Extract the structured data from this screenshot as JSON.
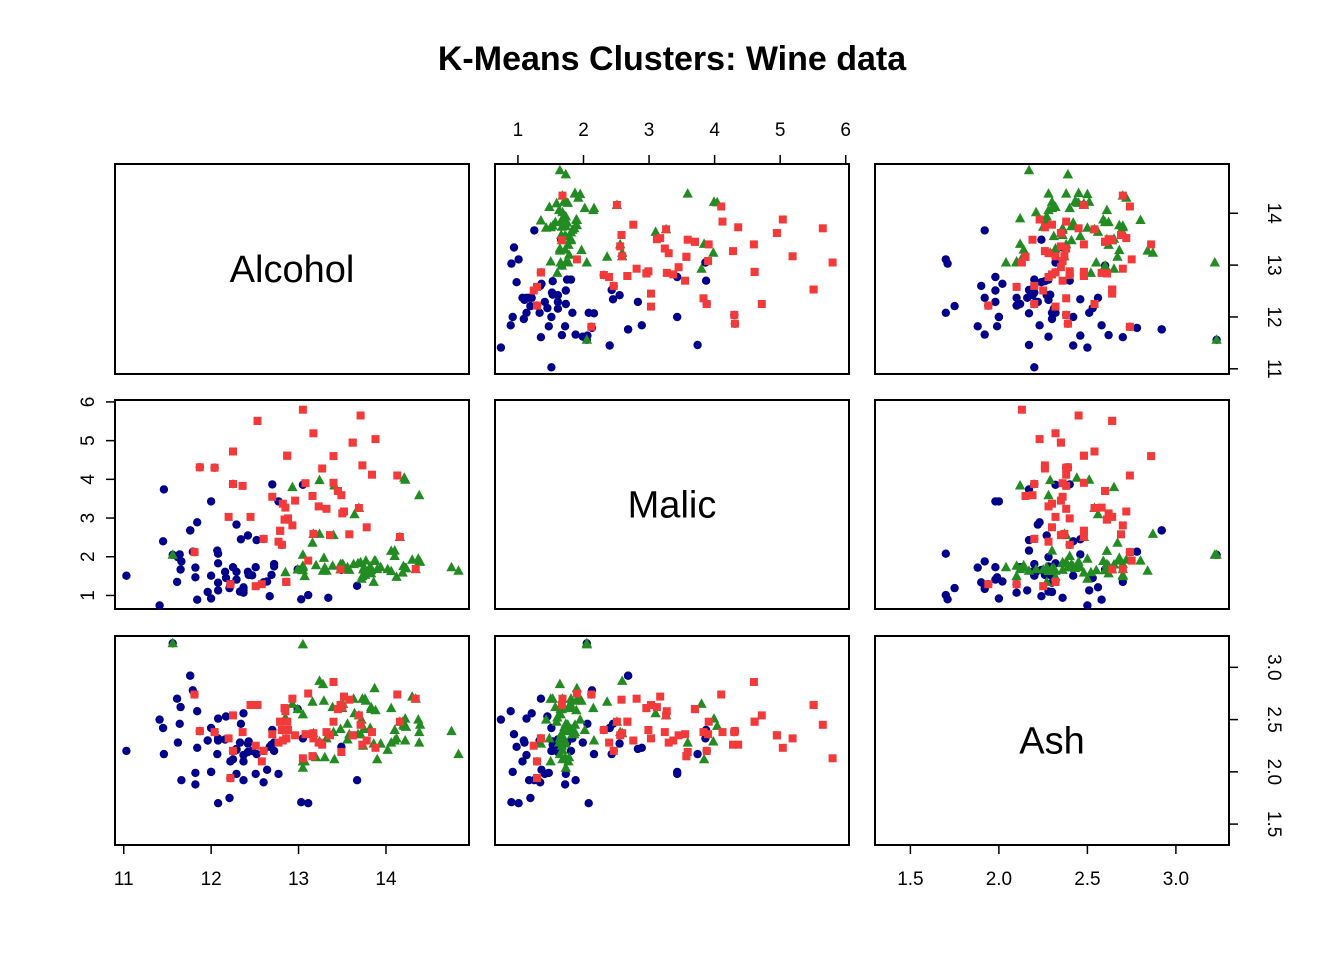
{
  "chart_data": {
    "type": "scatter-matrix",
    "title": "K-Means Clusters: Wine data",
    "variables": [
      "Alcohol",
      "Malic",
      "Ash"
    ],
    "axes": {
      "Alcohol": {
        "range": [
          10.9,
          14.95
        ],
        "ticks": [
          11,
          12,
          13,
          14
        ]
      },
      "Malic": {
        "range": [
          0.65,
          6.05
        ],
        "ticks": [
          1,
          2,
          3,
          4,
          5,
          6
        ]
      },
      "Ash": {
        "range": [
          1.3,
          3.3
        ],
        "ticks": [
          1.5,
          2.0,
          2.5,
          3.0
        ],
        "tick_labels": [
          "1.5",
          "2.0",
          "2.5",
          "3.0"
        ]
      }
    },
    "clusters": [
      {
        "color": "#00008B",
        "shape": "circle",
        "points": [
          [
            11.03,
            1.51,
            2.2
          ],
          [
            11.41,
            0.74,
            2.5
          ],
          [
            11.45,
            2.4,
            2.42
          ],
          [
            11.46,
            3.74,
            2.17
          ],
          [
            11.56,
            2.05,
            3.23
          ],
          [
            11.61,
            1.35,
            2.7
          ],
          [
            11.62,
            1.99,
            2.28
          ],
          [
            11.64,
            2.06,
            2.46
          ],
          [
            11.65,
            1.67,
            2.62
          ],
          [
            11.66,
            1.88,
            1.92
          ],
          [
            11.76,
            2.68,
            2.92
          ],
          [
            11.79,
            2.13,
            2.78
          ],
          [
            11.81,
            2.12,
            2.74
          ],
          [
            11.82,
            1.47,
            1.99
          ],
          [
            11.84,
            2.89,
            2.23
          ],
          [
            11.84,
            0.89,
            2.58
          ],
          [
            11.87,
            4.31,
            2.39
          ],
          [
            11.96,
            1.09,
            2.3
          ],
          [
            12.0,
            3.43,
            2.0
          ],
          [
            12.0,
            0.92,
            2.0
          ],
          [
            12.04,
            4.3,
            2.38
          ],
          [
            12.07,
            2.16,
            2.17
          ],
          [
            12.08,
            1.13,
            2.51
          ],
          [
            12.08,
            1.33,
            2.3
          ],
          [
            12.08,
            1.83,
            2.32
          ],
          [
            12.08,
            2.08,
            1.7
          ],
          [
            12.17,
            1.45,
            2.53
          ],
          [
            12.21,
            1.19,
            1.75
          ],
          [
            12.22,
            1.29,
            1.94
          ],
          [
            12.25,
            1.73,
            2.12
          ],
          [
            12.25,
            3.88,
            2.2
          ],
          [
            12.29,
            1.61,
            2.21
          ],
          [
            12.29,
            2.83,
            2.22
          ],
          [
            12.29,
            1.41,
            1.98
          ],
          [
            12.33,
            1.1,
            2.28
          ],
          [
            12.34,
            2.45,
            2.46
          ],
          [
            12.37,
            1.17,
            1.92
          ],
          [
            12.37,
            1.07,
            2.1
          ],
          [
            12.37,
            1.21,
            2.56
          ],
          [
            12.37,
            1.13,
            2.16
          ],
          [
            12.42,
            2.55,
            2.27
          ],
          [
            12.42,
            1.61,
            2.19
          ],
          [
            12.43,
            1.53,
            2.29
          ],
          [
            12.47,
            1.52,
            2.2
          ],
          [
            12.51,
            1.73,
            1.98
          ],
          [
            12.52,
            2.43,
            2.17
          ],
          [
            12.6,
            1.34,
            1.9
          ],
          [
            12.6,
            2.46,
            2.2
          ],
          [
            12.64,
            1.36,
            2.02
          ],
          [
            12.67,
            0.98,
            2.24
          ],
          [
            12.69,
            1.53,
            2.26
          ],
          [
            12.7,
            3.87,
            2.4
          ],
          [
            12.72,
            1.75,
            2.28
          ],
          [
            12.72,
            1.81,
            2.2
          ],
          [
            12.77,
            3.43,
            1.98
          ],
          [
            12.81,
            2.31,
            2.4
          ],
          [
            12.99,
            1.67,
            2.6
          ],
          [
            13.03,
            0.9,
            1.71
          ],
          [
            13.05,
            3.86,
            2.32
          ],
          [
            13.11,
            1.01,
            1.7
          ],
          [
            13.34,
            0.94,
            2.36
          ],
          [
            13.49,
            1.66,
            2.24
          ],
          [
            13.67,
            1.25,
            1.92
          ],
          [
            11.82,
            1.72,
            1.88
          ],
          [
            12.16,
            1.61,
            2.31
          ],
          [
            12.0,
            1.51,
            2.42
          ],
          [
            11.76,
            2.68,
            2.92
          ],
          [
            12.86,
            1.35,
            2.32
          ],
          [
            12.22,
            1.29,
            2.1
          ]
        ]
      },
      {
        "color": "#228B22",
        "shape": "triangle",
        "points": [
          [
            14.23,
            1.71,
            2.43
          ],
          [
            13.2,
            1.78,
            2.14
          ],
          [
            13.16,
            2.36,
            2.67
          ],
          [
            14.37,
            1.95,
            2.5
          ],
          [
            13.24,
            2.59,
            2.87
          ],
          [
            14.2,
            1.76,
            2.45
          ],
          [
            14.39,
            1.87,
            2.45
          ],
          [
            14.06,
            2.15,
            2.61
          ],
          [
            14.83,
            1.64,
            2.17
          ],
          [
            13.86,
            1.35,
            2.27
          ],
          [
            14.1,
            2.16,
            2.3
          ],
          [
            14.12,
            1.48,
            2.32
          ],
          [
            13.75,
            1.73,
            2.41
          ],
          [
            14.75,
            1.73,
            2.39
          ],
          [
            14.38,
            1.87,
            2.38
          ],
          [
            13.63,
            1.81,
            2.7
          ],
          [
            14.3,
            1.92,
            2.72
          ],
          [
            13.83,
            1.57,
            2.62
          ],
          [
            14.19,
            1.59,
            2.48
          ],
          [
            13.64,
            3.1,
            2.56
          ],
          [
            14.06,
            1.63,
            2.28
          ],
          [
            12.93,
            3.8,
            2.65
          ],
          [
            13.71,
            1.86,
            2.36
          ],
          [
            12.85,
            1.6,
            2.52
          ],
          [
            13.5,
            1.81,
            2.61
          ],
          [
            13.05,
            2.05,
            3.22
          ],
          [
            13.39,
            1.77,
            2.62
          ],
          [
            13.3,
            1.72,
            2.14
          ],
          [
            13.87,
            1.9,
            2.8
          ],
          [
            14.02,
            1.68,
            2.21
          ],
          [
            13.73,
            1.5,
            2.7
          ],
          [
            13.58,
            1.66,
            2.36
          ],
          [
            13.68,
            1.83,
            2.36
          ],
          [
            13.76,
            1.53,
            2.7
          ],
          [
            13.51,
            1.8,
            2.65
          ],
          [
            13.48,
            1.81,
            2.41
          ],
          [
            13.28,
            1.64,
            2.84
          ],
          [
            13.05,
            1.65,
            2.55
          ],
          [
            13.07,
            1.5,
            2.1
          ],
          [
            14.22,
            3.99,
            2.51
          ],
          [
            13.56,
            1.71,
            2.31
          ],
          [
            13.41,
            3.84,
            2.12
          ],
          [
            13.88,
            1.89,
            2.59
          ],
          [
            13.24,
            3.98,
            2.29
          ],
          [
            13.05,
            1.77,
            2.1
          ],
          [
            14.21,
            4.04,
            2.44
          ],
          [
            14.38,
            3.59,
            2.28
          ],
          [
            13.9,
            1.68,
            2.12
          ],
          [
            14.1,
            2.02,
            2.4
          ],
          [
            13.94,
            1.73,
            2.27
          ],
          [
            13.05,
            1.73,
            2.04
          ],
          [
            13.83,
            1.65,
            2.6
          ],
          [
            13.82,
            1.75,
            2.42
          ],
          [
            13.77,
            1.9,
            2.68
          ],
          [
            13.74,
            1.67,
            2.25
          ],
          [
            13.56,
            1.73,
            2.46
          ],
          [
            14.22,
            1.7,
            2.3
          ],
          [
            13.29,
            1.97,
            2.68
          ],
          [
            13.72,
            1.43,
            2.5
          ],
          [
            11.56,
            2.05,
            3.23
          ],
          [
            12.99,
            1.67,
            2.6
          ],
          [
            13.69,
            3.26,
            2.54
          ],
          [
            13.17,
            2.59,
            2.37
          ],
          [
            13.4,
            2.56,
            2.38
          ],
          [
            14.16,
            2.51,
            2.48
          ],
          [
            14.34,
            1.68,
            2.7
          ],
          [
            13.48,
            1.67,
            2.64
          ],
          [
            13.32,
            1.64,
            2.32
          ]
        ]
      },
      {
        "color": "#F23A3A",
        "shape": "square",
        "points": [
          [
            12.86,
            1.35,
            2.32
          ],
          [
            12.88,
            2.99,
            2.4
          ],
          [
            12.81,
            2.31,
            2.4
          ],
          [
            12.7,
            3.55,
            2.36
          ],
          [
            12.51,
            1.24,
            2.25
          ],
          [
            12.6,
            2.46,
            2.2
          ],
          [
            12.25,
            4.72,
            2.54
          ],
          [
            12.53,
            5.51,
            2.64
          ],
          [
            13.49,
            3.59,
            2.19
          ],
          [
            12.84,
            2.96,
            2.61
          ],
          [
            12.93,
            2.81,
            2.7
          ],
          [
            13.36,
            2.56,
            2.35
          ],
          [
            13.52,
            3.17,
            2.72
          ],
          [
            13.62,
            4.95,
            2.35
          ],
          [
            12.25,
            3.88,
            2.2
          ],
          [
            13.16,
            3.57,
            2.15
          ],
          [
            13.88,
            5.04,
            2.23
          ],
          [
            12.87,
            4.61,
            2.48
          ],
          [
            13.32,
            3.24,
            2.38
          ],
          [
            13.08,
            3.9,
            2.36
          ],
          [
            13.5,
            3.12,
            2.62
          ],
          [
            12.79,
            2.67,
            2.48
          ],
          [
            13.11,
            1.9,
            2.75
          ],
          [
            13.23,
            3.3,
            2.28
          ],
          [
            12.58,
            1.29,
            2.1
          ],
          [
            13.17,
            5.19,
            2.32
          ],
          [
            13.84,
            4.12,
            2.38
          ],
          [
            12.45,
            3.03,
            2.64
          ],
          [
            14.34,
            1.68,
            2.7
          ],
          [
            13.48,
            1.67,
            2.64
          ],
          [
            12.36,
            3.83,
            2.38
          ],
          [
            13.69,
            3.26,
            2.54
          ],
          [
            12.85,
            3.27,
            2.58
          ],
          [
            12.96,
            3.45,
            2.35
          ],
          [
            13.78,
            2.76,
            2.3
          ],
          [
            13.73,
            4.36,
            2.26
          ],
          [
            13.45,
            3.7,
            2.6
          ],
          [
            12.82,
            3.37,
            2.3
          ],
          [
            13.58,
            2.58,
            2.69
          ],
          [
            13.4,
            4.6,
            2.86
          ],
          [
            12.2,
            3.03,
            2.32
          ],
          [
            12.77,
            2.39,
            2.28
          ],
          [
            14.16,
            2.51,
            2.48
          ],
          [
            13.71,
            5.65,
            2.45
          ],
          [
            13.4,
            3.91,
            2.48
          ],
          [
            13.27,
            4.28,
            2.26
          ],
          [
            13.17,
            2.59,
            2.37
          ],
          [
            14.13,
            4.1,
            2.74
          ],
          [
            11.81,
            2.12,
            2.74
          ],
          [
            12.79,
            2.67,
            2.48
          ],
          [
            12.22,
            1.29,
            1.94
          ],
          [
            13.05,
            5.8,
            2.13
          ],
          [
            12.53,
            5.51,
            2.64
          ],
          [
            12.84,
            2.96,
            2.61
          ],
          [
            13.62,
            4.95,
            2.35
          ],
          [
            12.86,
            1.35,
            2.32
          ],
          [
            13.16,
            3.57,
            2.15
          ],
          [
            11.87,
            4.31,
            2.39
          ],
          [
            12.04,
            4.3,
            2.38
          ],
          [
            13.45,
            3.7,
            2.6
          ],
          [
            12.87,
            4.61,
            2.48
          ]
        ]
      }
    ]
  }
}
